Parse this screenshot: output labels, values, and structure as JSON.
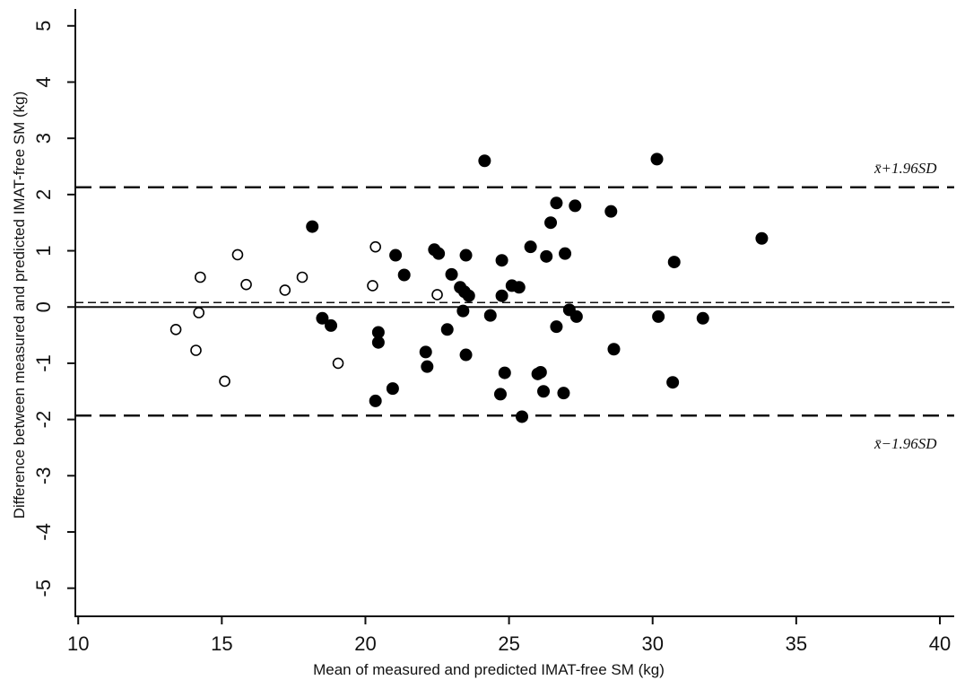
{
  "chart_data": {
    "type": "scatter",
    "xlabel": "Mean of measured and predicted IMAT-free SM (kg)",
    "ylabel": "Difference between measured and predicted IMAT-free SM (kg)",
    "xlim": [
      9.9,
      40.5
    ],
    "ylim": [
      -5.5,
      5.3
    ],
    "x_ticks": [
      10,
      15,
      20,
      25,
      30,
      35,
      40
    ],
    "y_ticks": [
      -5,
      -4,
      -3,
      -2,
      -1,
      0,
      1,
      2,
      3,
      4,
      5
    ],
    "x_tick_labels": [
      "10",
      "15",
      "20",
      "25",
      "30",
      "35",
      "40"
    ],
    "y_tick_labels": [
      "-5",
      "-4",
      "-3",
      "-2",
      "-1",
      "0",
      "1",
      "2",
      "3",
      "4",
      "5"
    ],
    "grid": false,
    "reference_lines": {
      "zero": 0,
      "mean_difference": 0.08,
      "upper_limit": 2.13,
      "lower_limit": -1.93
    },
    "annotations": {
      "upper_limit": "x̄+1.96SD",
      "lower_limit": "x̄−1.96SD"
    },
    "series": [
      {
        "marker": "open-circle",
        "points": [
          [
            13.4,
            -0.4
          ],
          [
            14.1,
            -0.77
          ],
          [
            14.2,
            -0.1
          ],
          [
            14.25,
            0.53
          ],
          [
            15.1,
            -1.32
          ],
          [
            15.55,
            0.93
          ],
          [
            15.85,
            0.4
          ],
          [
            17.2,
            0.3
          ],
          [
            17.8,
            0.53
          ],
          [
            19.05,
            -1.0
          ],
          [
            20.25,
            0.38
          ],
          [
            20.35,
            1.07
          ],
          [
            22.5,
            0.22
          ]
        ]
      },
      {
        "marker": "filled-circle",
        "points": [
          [
            18.15,
            1.43
          ],
          [
            18.5,
            -0.2
          ],
          [
            18.8,
            -0.33
          ],
          [
            20.35,
            -1.67
          ],
          [
            20.45,
            -0.45
          ],
          [
            20.45,
            -0.63
          ],
          [
            20.95,
            -1.45
          ],
          [
            21.05,
            0.92
          ],
          [
            21.35,
            0.57
          ],
          [
            22.1,
            -0.8
          ],
          [
            22.15,
            -1.06
          ],
          [
            22.4,
            1.02
          ],
          [
            22.55,
            0.95
          ],
          [
            22.85,
            -0.4
          ],
          [
            23.0,
            0.58
          ],
          [
            23.3,
            0.35
          ],
          [
            23.4,
            -0.07
          ],
          [
            23.45,
            0.27
          ],
          [
            23.5,
            -0.85
          ],
          [
            23.5,
            0.92
          ],
          [
            23.6,
            0.2
          ],
          [
            24.15,
            2.6
          ],
          [
            24.35,
            -0.15
          ],
          [
            24.7,
            -1.55
          ],
          [
            24.75,
            0.2
          ],
          [
            24.75,
            0.83
          ],
          [
            24.85,
            -1.17
          ],
          [
            25.1,
            0.38
          ],
          [
            25.35,
            0.35
          ],
          [
            25.45,
            -1.95
          ],
          [
            25.75,
            1.07
          ],
          [
            26.0,
            -1.19
          ],
          [
            26.1,
            -1.16
          ],
          [
            26.2,
            -1.5
          ],
          [
            26.3,
            0.9
          ],
          [
            26.45,
            1.5
          ],
          [
            26.65,
            1.85
          ],
          [
            26.65,
            -0.35
          ],
          [
            26.9,
            -1.53
          ],
          [
            26.95,
            0.95
          ],
          [
            27.1,
            -0.05
          ],
          [
            27.3,
            1.8
          ],
          [
            27.35,
            -0.17
          ],
          [
            28.55,
            1.7
          ],
          [
            28.65,
            -0.75
          ],
          [
            30.15,
            2.63
          ],
          [
            30.2,
            -0.17
          ],
          [
            30.7,
            -1.34
          ],
          [
            30.75,
            0.8
          ],
          [
            31.75,
            -0.2
          ],
          [
            33.8,
            1.22
          ]
        ]
      }
    ]
  }
}
